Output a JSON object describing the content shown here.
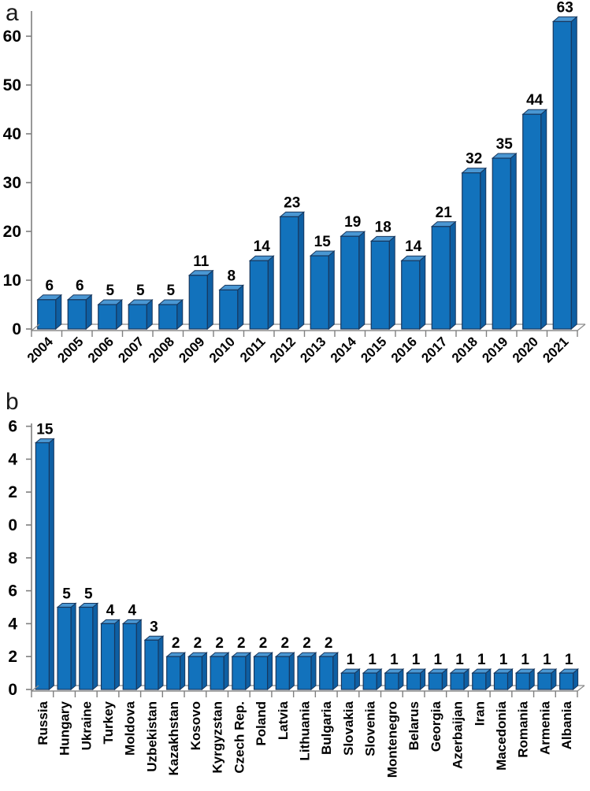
{
  "figure": {
    "background": "#ffffff",
    "panels": [
      {
        "id": "a",
        "label": "a"
      },
      {
        "id": "b",
        "label": "b"
      }
    ]
  },
  "chart_data": [
    {
      "type": "bar",
      "panel": "a",
      "style": "3d-column",
      "title": "",
      "xlabel": "",
      "ylabel": "",
      "categories": [
        "2004",
        "2005",
        "2006",
        "2007",
        "2008",
        "2009",
        "2010",
        "2011",
        "2012",
        "2013",
        "2014",
        "2015",
        "2016",
        "2017",
        "2018",
        "2019",
        "2020",
        "2021"
      ],
      "values": [
        6,
        6,
        5,
        5,
        5,
        11,
        8,
        14,
        23,
        15,
        19,
        18,
        14,
        21,
        32,
        35,
        44,
        63
      ],
      "data_labels": true,
      "ylim": [
        0,
        65
      ],
      "yticks": [
        {
          "v": 0,
          "label": "0"
        },
        {
          "v": 10,
          "label": "10"
        },
        {
          "v": 20,
          "label": "20"
        },
        {
          "v": 30,
          "label": "30"
        },
        {
          "v": 40,
          "label": "40"
        },
        {
          "v": 50,
          "label": "50"
        },
        {
          "v": 60,
          "label": "60"
        }
      ],
      "ytick_labels_clipped": false,
      "grid": false,
      "legend": "none",
      "x_label_rotation_deg": -45,
      "colors": {
        "bar_front": "#1272BC",
        "bar_top": "#4A97D3",
        "bar_side": "#0E5FA3",
        "bar_outline": "#17375E",
        "axis": "#7F7F7F",
        "floor": "#8C8C8C",
        "text": "#000000"
      }
    },
    {
      "type": "bar",
      "panel": "b",
      "style": "3d-column",
      "title": "",
      "xlabel": "",
      "ylabel": "",
      "categories": [
        "Russia",
        "Hungary",
        "Ukraine",
        "Turkey",
        "Moldova",
        "Uzbekistan",
        "Kazakhstan",
        "Kosovo",
        "Kyrgyzstan",
        "Czech Rep.",
        "Poland",
        "Latvia",
        "Lithuania",
        "Bulgaria",
        "Slovakia",
        "Slovenia",
        "Montenegro",
        "Belarus",
        "Georgia",
        "Azerbaijan",
        "Iran",
        "Macedonia",
        "Romania",
        "Armenia",
        "Albania"
      ],
      "values": [
        15,
        5,
        5,
        4,
        4,
        3,
        2,
        2,
        2,
        2,
        2,
        2,
        2,
        2,
        1,
        1,
        1,
        1,
        1,
        1,
        1,
        1,
        1,
        1,
        1
      ],
      "data_labels": true,
      "ylim": [
        0,
        16
      ],
      "yticks": [
        {
          "v": 0,
          "label": "0"
        },
        {
          "v": 2,
          "label": "2"
        },
        {
          "v": 4,
          "label": "4"
        },
        {
          "v": 6,
          "label": "6"
        },
        {
          "v": 8,
          "label": "8"
        },
        {
          "v": 10,
          "label": "0"
        },
        {
          "v": 12,
          "label": "2"
        },
        {
          "v": 14,
          "label": "4"
        },
        {
          "v": 16,
          "label": "6"
        }
      ],
      "ytick_labels_clipped": true,
      "grid": false,
      "legend": "none",
      "x_label_rotation_deg": -90,
      "colors": {
        "bar_front": "#1272BC",
        "bar_top": "#4A97D3",
        "bar_side": "#0E5FA3",
        "bar_outline": "#17375E",
        "axis": "#7F7F7F",
        "floor": "#8C8C8C",
        "text": "#000000"
      }
    }
  ]
}
